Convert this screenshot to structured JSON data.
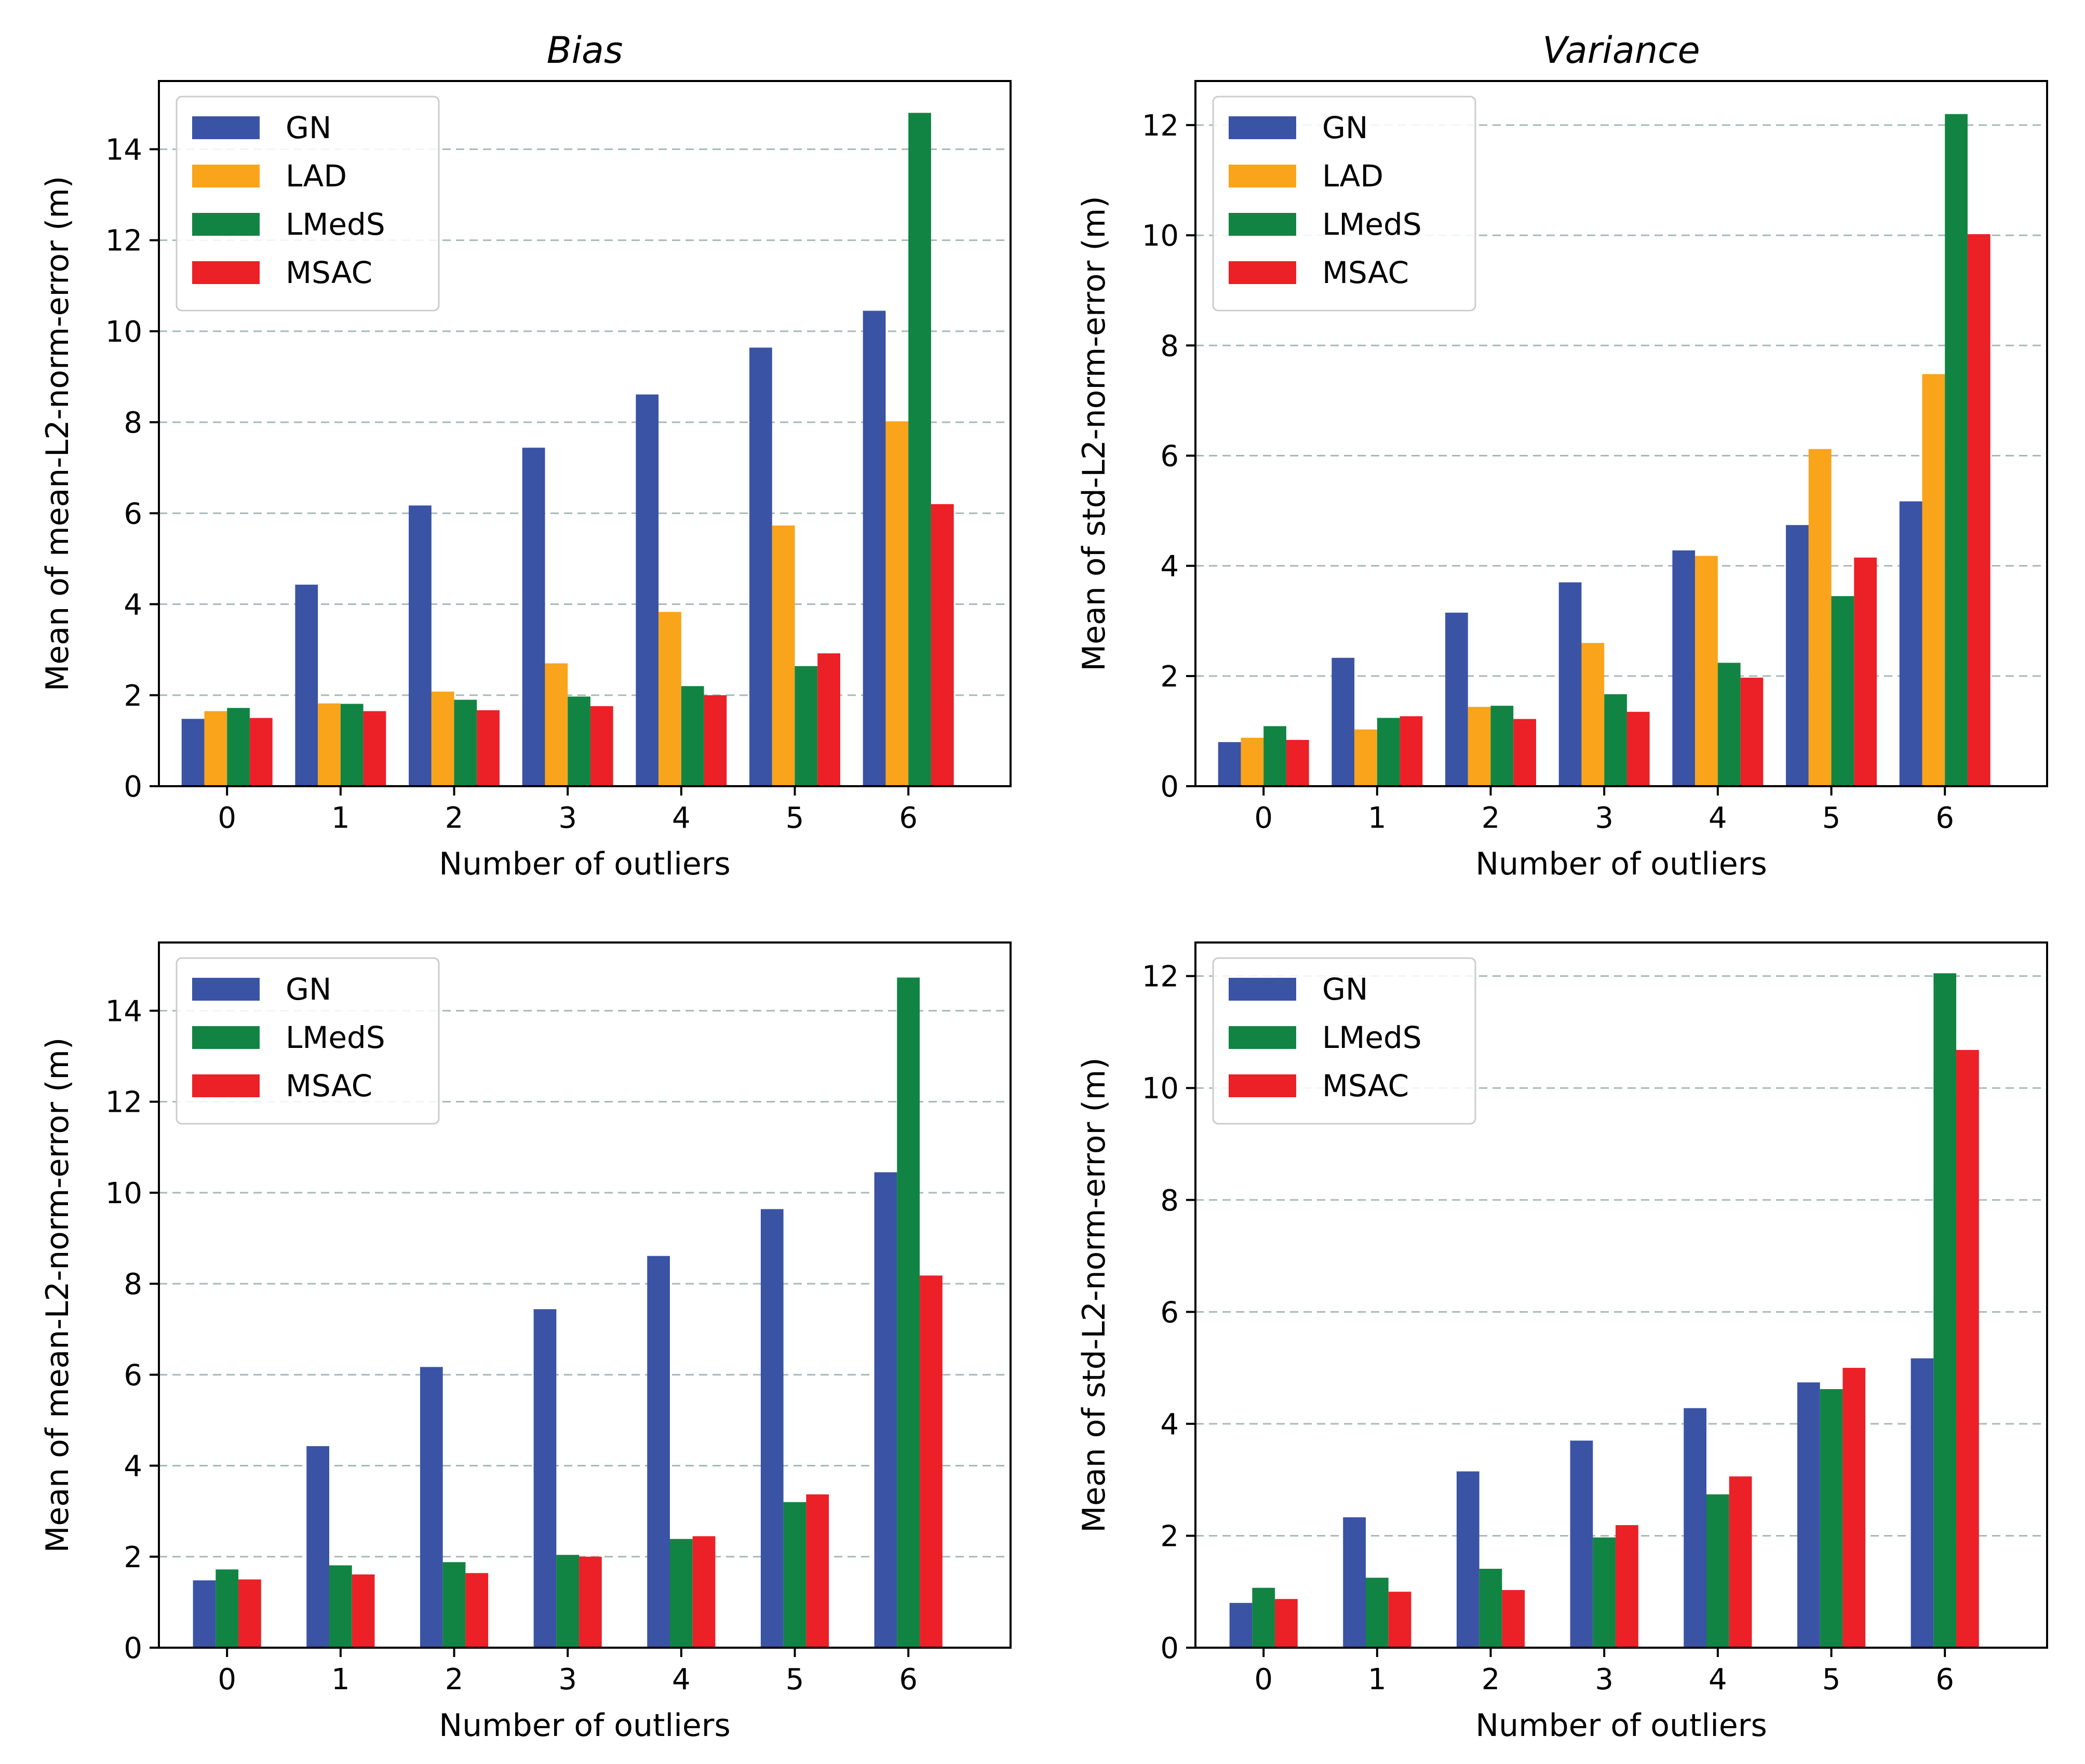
{
  "colors": {
    "GN": "#3a53a4",
    "LAD": "#f9a41b",
    "LMedS": "#118443",
    "MSAC": "#ec2027",
    "grid": "#a8b8b8",
    "axes": "#000000",
    "background": "#ffffff"
  },
  "chart_data": [
    {
      "type": "bar",
      "title": "Bias",
      "xlabel": "Number of outliers",
      "ylabel": "Mean of mean-L2-norm-error (m)",
      "categories": [
        "0",
        "1",
        "2",
        "3",
        "4",
        "5",
        "6"
      ],
      "ylim": [
        0,
        15.5
      ],
      "yticks": [
        "0",
        "2",
        "4",
        "6",
        "8",
        "10",
        "12",
        "14"
      ],
      "grid": "horizontal-dashed",
      "legend_position": "top-left",
      "series": [
        {
          "name": "GN",
          "values": [
            1.48,
            4.43,
            6.17,
            7.44,
            8.61,
            9.64,
            10.45
          ]
        },
        {
          "name": "LAD",
          "values": [
            1.65,
            1.82,
            2.08,
            2.7,
            3.83,
            5.73,
            8.02
          ]
        },
        {
          "name": "LMedS",
          "values": [
            1.72,
            1.81,
            1.9,
            1.97,
            2.2,
            2.64,
            14.8
          ]
        },
        {
          "name": "MSAC",
          "values": [
            1.5,
            1.65,
            1.67,
            1.76,
            2.0,
            2.92,
            6.2
          ]
        }
      ]
    },
    {
      "type": "bar",
      "title": "Variance",
      "xlabel": "Number of outliers",
      "ylabel": "Mean of std-L2-norm-error (m)",
      "categories": [
        "0",
        "1",
        "2",
        "3",
        "4",
        "5",
        "6"
      ],
      "ylim": [
        0,
        12.8
      ],
      "yticks": [
        "0",
        "2",
        "4",
        "6",
        "8",
        "10",
        "12"
      ],
      "grid": "horizontal-dashed",
      "legend_position": "top-left",
      "series": [
        {
          "name": "GN",
          "values": [
            0.8,
            2.33,
            3.15,
            3.7,
            4.28,
            4.74,
            5.17
          ]
        },
        {
          "name": "LAD",
          "values": [
            0.88,
            1.03,
            1.44,
            2.6,
            4.18,
            6.12,
            7.48
          ]
        },
        {
          "name": "LMedS",
          "values": [
            1.09,
            1.24,
            1.46,
            1.67,
            2.24,
            3.45,
            12.2
          ]
        },
        {
          "name": "MSAC",
          "values": [
            0.84,
            1.27,
            1.22,
            1.35,
            1.97,
            4.15,
            10.02
          ]
        }
      ]
    },
    {
      "type": "bar",
      "title": "",
      "xlabel": "Number of outliers",
      "ylabel": "Mean of mean-L2-norm-error (m)",
      "categories": [
        "0",
        "1",
        "2",
        "3",
        "4",
        "5",
        "6"
      ],
      "ylim": [
        0,
        15.5
      ],
      "yticks": [
        "0",
        "2",
        "4",
        "6",
        "8",
        "10",
        "12",
        "14"
      ],
      "grid": "horizontal-dashed",
      "legend_position": "top-left",
      "series": [
        {
          "name": "GN",
          "values": [
            1.48,
            4.43,
            6.17,
            7.44,
            8.61,
            9.64,
            10.45
          ]
        },
        {
          "name": "LMedS",
          "values": [
            1.72,
            1.81,
            1.88,
            2.04,
            2.39,
            3.2,
            14.73
          ]
        },
        {
          "name": "MSAC",
          "values": [
            1.5,
            1.61,
            1.64,
            2.0,
            2.45,
            3.37,
            8.18
          ]
        }
      ]
    },
    {
      "type": "bar",
      "title": "",
      "xlabel": "Number of outliers",
      "ylabel": "Mean of std-L2-norm-error (m)",
      "categories": [
        "0",
        "1",
        "2",
        "3",
        "4",
        "5",
        "6"
      ],
      "ylim": [
        0,
        12.6
      ],
      "yticks": [
        "0",
        "2",
        "4",
        "6",
        "8",
        "10",
        "12"
      ],
      "grid": "horizontal-dashed",
      "legend_position": "top-left",
      "series": [
        {
          "name": "GN",
          "values": [
            0.8,
            2.33,
            3.15,
            3.7,
            4.28,
            4.74,
            5.17
          ]
        },
        {
          "name": "LMedS",
          "values": [
            1.07,
            1.25,
            1.41,
            1.97,
            2.74,
            4.62,
            12.05
          ]
        },
        {
          "name": "MSAC",
          "values": [
            0.87,
            1.0,
            1.03,
            2.19,
            3.06,
            5.0,
            10.68
          ]
        }
      ]
    }
  ]
}
